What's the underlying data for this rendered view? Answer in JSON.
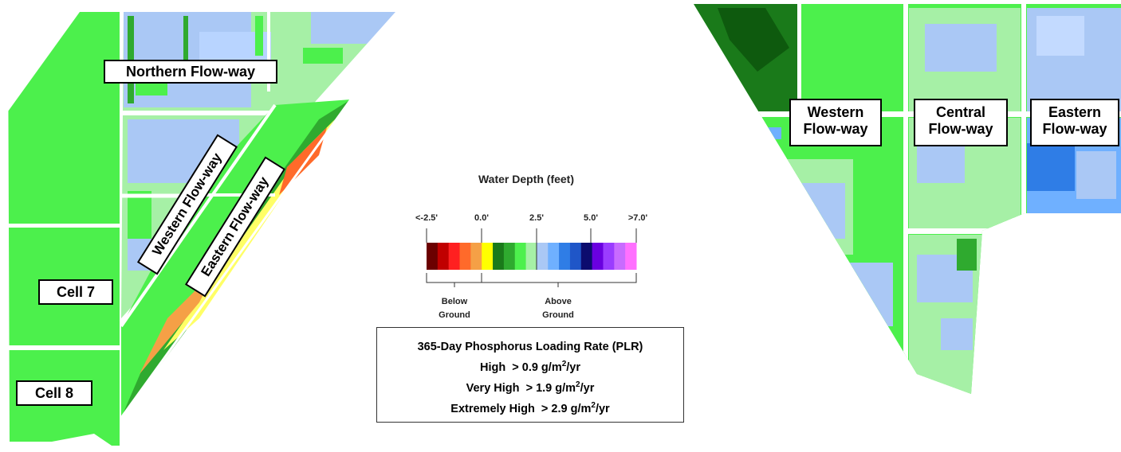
{
  "left_map_labels": {
    "northern": "Northern Flow-way",
    "western": "Western Flow-way",
    "eastern": "Eastern Flow-way",
    "cell7": "Cell 7",
    "cell8": "Cell 8"
  },
  "right_map_labels": {
    "western": [
      "Western",
      "Flow-way"
    ],
    "central": [
      "Central",
      "Flow-way"
    ],
    "eastern": [
      "Eastern",
      "Flow-way"
    ]
  },
  "legend": {
    "title": "Water Depth (feet)",
    "ticks": [
      "<-2.5'",
      "0.0'",
      "2.5'",
      "5.0'",
      ">7.0'"
    ],
    "below_label": [
      "Below",
      "Ground"
    ],
    "above_label": [
      "Above",
      "Ground"
    ],
    "colors": [
      "#6b0000",
      "#c00000",
      "#ff2020",
      "#ff6a2a",
      "#f5a046",
      "#ffff00",
      "#1a7a1a",
      "#2faa2f",
      "#4df04d",
      "#a6f0a6",
      "#aac8f5",
      "#6fb0ff",
      "#2f7de6",
      "#1f56c8",
      "#0c0c6e",
      "#6a00e0",
      "#9a3cff",
      "#c86bff",
      "#ff70ff"
    ]
  },
  "plr": {
    "title": "365-Day Phosphorus Loading Rate (PLR)",
    "lines": [
      {
        "label": "High",
        "op": ">",
        "value": "0.9 g/m",
        "sup": "2",
        "unit": "/yr"
      },
      {
        "label": "Very High",
        "op": ">",
        "value": "1.9 g/m",
        "sup": "2",
        "unit": "/yr"
      },
      {
        "label": "Extremely High",
        "op": ">",
        "value": "2.9 g/m",
        "sup": "2",
        "unit": "/yr"
      }
    ]
  }
}
